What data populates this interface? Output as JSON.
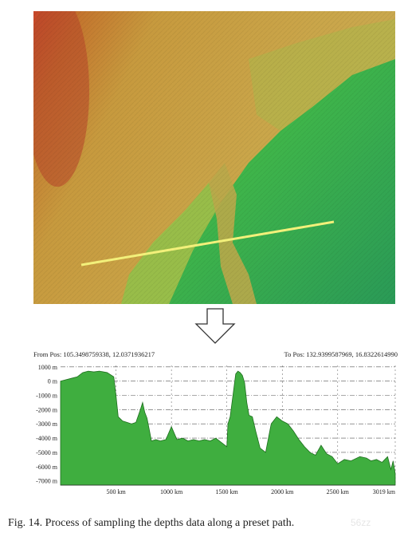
{
  "figure": {
    "from_pos": "From Pos: 105.3498759338, 12.0371936217",
    "to_pos": "To Pos: 132.9399587969, 16.8322614990",
    "caption": "Fig. 14.   Process of sampling the depths data along a preset path.",
    "watermark": "56zz"
  },
  "colors": {
    "profile_fill": "#3fae3f",
    "profile_stroke": "#1e6e1e",
    "map_path_line": "#f2f07a"
  },
  "chart_data": {
    "type": "area",
    "x_unit": "km",
    "y_unit": "m",
    "xlim": [
      0,
      3019
    ],
    "ylim": [
      -7300,
      1100
    ],
    "x_ticks": [
      500,
      1000,
      1500,
      2000,
      2500,
      3019
    ],
    "x_tick_labels": [
      "500 km",
      "1000 km",
      "1500 km",
      "2000 km",
      "2500 km",
      "3019 km"
    ],
    "y_ticks": [
      1000,
      0,
      -1000,
      -2000,
      -3000,
      -4000,
      -5000,
      -6000,
      -7000
    ],
    "y_tick_labels": [
      "1000 m",
      "0 m",
      "-1000 m",
      "-2000 m",
      "-3000 m",
      "-4000 m",
      "-5000 m",
      "-6000 m",
      "-7000 m"
    ],
    "grid": true,
    "series": [
      {
        "x": [
          0,
          100,
          150,
          200,
          250,
          300,
          350,
          420,
          480,
          500,
          520,
          560,
          600,
          640,
          680,
          720,
          740,
          760,
          780,
          800,
          820,
          860,
          900,
          950,
          1000,
          1050,
          1100,
          1150,
          1200,
          1250,
          1300,
          1350,
          1400,
          1450,
          1500,
          1510,
          1530,
          1560,
          1580,
          1600,
          1620,
          1640,
          1660,
          1680,
          1700,
          1730,
          1760,
          1800,
          1850,
          1900,
          1950,
          2000,
          2050,
          2100,
          2150,
          2200,
          2250,
          2300,
          2350,
          2400,
          2450,
          2500,
          2560,
          2620,
          2700,
          2760,
          2800,
          2850,
          2900,
          2950,
          2980,
          3000,
          3019
        ],
        "y": [
          0,
          200,
          300,
          600,
          700,
          650,
          700,
          600,
          300,
          -1000,
          -2500,
          -2800,
          -2900,
          -3000,
          -2900,
          -2000,
          -1500,
          -2200,
          -2600,
          -3400,
          -4200,
          -4100,
          -4200,
          -4100,
          -3200,
          -4100,
          -4000,
          -4200,
          -4100,
          -4200,
          -4100,
          -4200,
          -4000,
          -4300,
          -4600,
          -3000,
          -2500,
          -700,
          500,
          700,
          600,
          400,
          -100,
          -1500,
          -2400,
          -2500,
          -3500,
          -4700,
          -5000,
          -3000,
          -2500,
          -2800,
          -3000,
          -3500,
          -4100,
          -4600,
          -5000,
          -5200,
          -4500,
          -5100,
          -5300,
          -5800,
          -5500,
          -5600,
          -5300,
          -5400,
          -5600,
          -5500,
          -5700,
          -5300,
          -6200,
          -5600,
          -6500
        ]
      }
    ]
  }
}
